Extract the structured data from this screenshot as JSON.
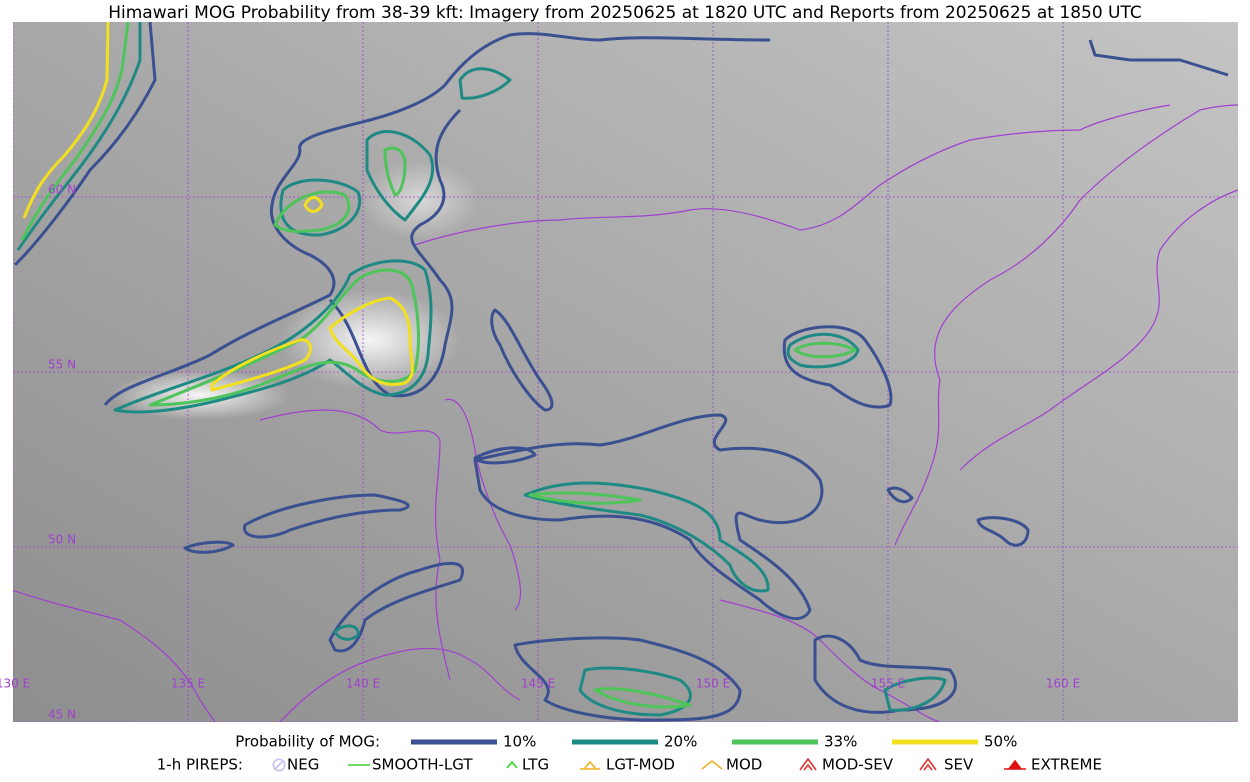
{
  "title": "Himawari MOG Probability from 38-39 kft: Imagery from 20250625 at 1820 UTC and Reports from 20250625 at 1850 UTC",
  "map": {
    "lonlim": [
      130,
      165
    ],
    "latlim": [
      45,
      65
    ],
    "lon": [
      {
        "value": 130,
        "label": "130 E"
      },
      {
        "value": 135,
        "label": "135 E"
      },
      {
        "value": 140,
        "label": "140 E"
      },
      {
        "value": 145,
        "label": "145 E"
      },
      {
        "value": 150,
        "label": "150 E"
      },
      {
        "value": 155,
        "label": "155 E"
      },
      {
        "value": 160,
        "label": "160 E"
      }
    ],
    "lat": [
      {
        "value": 45,
        "label": "45 N"
      },
      {
        "value": 50,
        "label": "50 N"
      },
      {
        "value": 55,
        "label": "55 N"
      },
      {
        "value": 60,
        "label": "60 N"
      }
    ]
  },
  "legend": {
    "probability": {
      "title": "Probability of MOG:",
      "items": [
        {
          "label": "10%",
          "color": "#3b5090"
        },
        {
          "label": "20%",
          "color": "#1f8a84"
        },
        {
          "label": "33%",
          "color": "#4ec45a"
        },
        {
          "label": "50%",
          "color": "#f2e01e"
        }
      ]
    },
    "pireps": {
      "title": "1-h PIREPS:",
      "items": [
        {
          "label": "NEG",
          "color": "#c8c0f0"
        },
        {
          "label": "SMOOTH-LGT",
          "color": "#40d040"
        },
        {
          "label": "LTG",
          "color": "#20e020"
        },
        {
          "label": "LGT-MOD",
          "color": "#f0b020"
        },
        {
          "label": "MOD",
          "color": "#f0b020"
        },
        {
          "label": "MOD-SEV",
          "color": "#e03030"
        },
        {
          "label": "SEV",
          "color": "#e03030"
        },
        {
          "label": "EXTREME",
          "color": "#e01010"
        }
      ]
    }
  }
}
